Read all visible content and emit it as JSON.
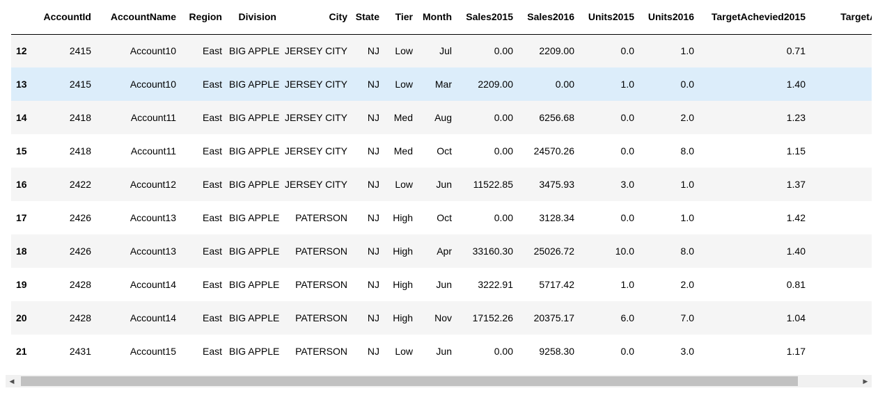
{
  "table": {
    "columns": [
      "",
      "AccountId",
      "AccountName",
      "Region",
      "Division",
      "City",
      "State",
      "Tier",
      "Month",
      "Sales2015",
      "Sales2016",
      "Units2015",
      "Units2016",
      "TargetAchevied2015",
      "TargetAchev"
    ],
    "rows": [
      {
        "index": "12",
        "cells": [
          "2415",
          "Account10",
          "East",
          "BIG APPLE",
          "JERSEY CITY",
          "NJ",
          "Low",
          "Jul",
          "0.00",
          "2209.00",
          "0.0",
          "1.0",
          "0.71",
          ""
        ]
      },
      {
        "index": "13",
        "cells": [
          "2415",
          "Account10",
          "East",
          "BIG APPLE",
          "JERSEY CITY",
          "NJ",
          "Low",
          "Mar",
          "2209.00",
          "0.00",
          "1.0",
          "0.0",
          "1.40",
          ""
        ]
      },
      {
        "index": "14",
        "cells": [
          "2418",
          "Account11",
          "East",
          "BIG APPLE",
          "JERSEY CITY",
          "NJ",
          "Med",
          "Aug",
          "0.00",
          "6256.68",
          "0.0",
          "2.0",
          "1.23",
          ""
        ]
      },
      {
        "index": "15",
        "cells": [
          "2418",
          "Account11",
          "East",
          "BIG APPLE",
          "JERSEY CITY",
          "NJ",
          "Med",
          "Oct",
          "0.00",
          "24570.26",
          "0.0",
          "8.0",
          "1.15",
          ""
        ]
      },
      {
        "index": "16",
        "cells": [
          "2422",
          "Account12",
          "East",
          "BIG APPLE",
          "JERSEY CITY",
          "NJ",
          "Low",
          "Jun",
          "11522.85",
          "3475.93",
          "3.0",
          "1.0",
          "1.37",
          ""
        ]
      },
      {
        "index": "17",
        "cells": [
          "2426",
          "Account13",
          "East",
          "BIG APPLE",
          "PATERSON",
          "NJ",
          "High",
          "Oct",
          "0.00",
          "3128.34",
          "0.0",
          "1.0",
          "1.42",
          ""
        ]
      },
      {
        "index": "18",
        "cells": [
          "2426",
          "Account13",
          "East",
          "BIG APPLE",
          "PATERSON",
          "NJ",
          "High",
          "Apr",
          "33160.30",
          "25026.72",
          "10.0",
          "8.0",
          "1.40",
          ""
        ]
      },
      {
        "index": "19",
        "cells": [
          "2428",
          "Account14",
          "East",
          "BIG APPLE",
          "PATERSON",
          "NJ",
          "High",
          "Jun",
          "3222.91",
          "5717.42",
          "1.0",
          "2.0",
          "0.81",
          ""
        ]
      },
      {
        "index": "20",
        "cells": [
          "2428",
          "Account14",
          "East",
          "BIG APPLE",
          "PATERSON",
          "NJ",
          "High",
          "Nov",
          "17152.26",
          "20375.17",
          "6.0",
          "7.0",
          "1.04",
          ""
        ]
      },
      {
        "index": "21",
        "cells": [
          "2431",
          "Account15",
          "East",
          "BIG APPLE",
          "PATERSON",
          "NJ",
          "Low",
          "Jun",
          "0.00",
          "9258.30",
          "0.0",
          "3.0",
          "1.17",
          ""
        ]
      }
    ]
  },
  "selected_row_index": 1,
  "scrollbar": {
    "left_arrow_icon": "◀",
    "right_arrow_icon": "▶",
    "thumb_fraction": 0.93,
    "position_fraction": 0.0
  },
  "colors": {
    "row_odd": "#f5f5f5",
    "row_even": "#ffffff",
    "row_selected": "#dcedfa",
    "scrollbar_track": "#f1f1f1",
    "scrollbar_thumb": "#c1c1c1"
  }
}
